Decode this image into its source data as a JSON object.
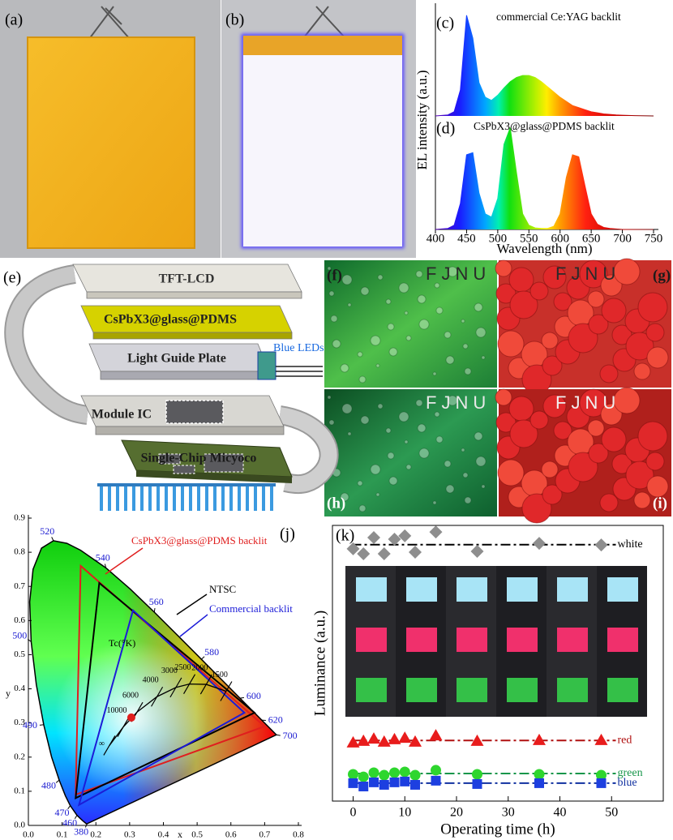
{
  "photos": [
    {
      "label": "(a)"
    },
    {
      "label": "(b)"
    },
    {
      "label": "(f)",
      "caption": "FJNU"
    },
    {
      "label": "(g)",
      "caption": "FJNU"
    },
    {
      "label": "(h)",
      "caption": "FJNU"
    },
    {
      "label": "(i)",
      "caption": "FJNU"
    }
  ],
  "diagram": {
    "label": "(e)",
    "layers": [
      "TFT-LCD",
      "CsPbX3@glass@PDMS",
      "Light Guide Plate",
      "Module IC",
      "Single-Chip Micyoco"
    ],
    "leds": "Blue LEDs"
  },
  "chart_data": [
    {
      "type": "area",
      "ylabel": "EL intensity (a.u.)",
      "xlabel": "Wavelength (nm)",
      "x": [
        400,
        410,
        420,
        430,
        440,
        450,
        460,
        470,
        480,
        490,
        500,
        510,
        520,
        530,
        540,
        550,
        560,
        570,
        580,
        590,
        600,
        610,
        620,
        630,
        640,
        650,
        660,
        670,
        680,
        690,
        700,
        710,
        720,
        730,
        740,
        750
      ],
      "xlim": [
        400,
        750
      ],
      "xticks": [
        400,
        450,
        500,
        550,
        600,
        650,
        700,
        750
      ],
      "ylim": [
        0,
        1
      ],
      "series": [
        {
          "name": "commercial Ce:YAG backlit",
          "panel": "(c)",
          "values": [
            0,
            0.005,
            0.01,
            0.04,
            0.25,
            0.97,
            0.75,
            0.32,
            0.18,
            0.15,
            0.2,
            0.27,
            0.33,
            0.37,
            0.39,
            0.39,
            0.37,
            0.33,
            0.28,
            0.23,
            0.18,
            0.14,
            0.1,
            0.08,
            0.06,
            0.04,
            0.03,
            0.02,
            0.015,
            0.01,
            0.007,
            0.005,
            0.003,
            0.002,
            0.001,
            0
          ]
        },
        {
          "name": "CsPbX3@glass@PDMS backlit",
          "panel": "(d)",
          "values": [
            0,
            0.005,
            0.01,
            0.04,
            0.25,
            0.72,
            0.74,
            0.35,
            0.15,
            0.12,
            0.3,
            0.82,
            0.98,
            0.55,
            0.15,
            0.04,
            0.015,
            0.01,
            0.01,
            0.03,
            0.15,
            0.5,
            0.72,
            0.7,
            0.42,
            0.15,
            0.05,
            0.02,
            0.01,
            0.005,
            0,
            0,
            0,
            0,
            0,
            0
          ]
        }
      ]
    },
    {
      "type": "cie",
      "panel": "(j)",
      "xlabel": "x",
      "ylabel": "y",
      "xlim": [
        0,
        0.8
      ],
      "ylim": [
        0,
        0.9
      ],
      "xticks": [
        {
          "value": 0,
          "label": "0.0"
        },
        0.1,
        0.2,
        0.3,
        0.4,
        0.5,
        0.6,
        0.7,
        0.8
      ],
      "yticks": [
        {
          "value": 0,
          "label": "0.0"
        },
        0.1,
        0.2,
        0.3,
        0.4,
        0.5,
        0.6,
        0.7,
        0.8,
        0.9
      ],
      "locus": {
        "x": [
          0.1741,
          0.1714,
          0.1644,
          0.1566,
          0.144,
          0.1241,
          0.1096,
          0.0913,
          0.0687,
          0.0454,
          0.0235,
          0.0082,
          0.0039,
          0.0139,
          0.0389,
          0.0743,
          0.1142,
          0.1547,
          0.2296,
          0.3016,
          0.3731,
          0.4441,
          0.5125,
          0.5752,
          0.627,
          0.6658,
          0.6915,
          0.719,
          0.7347
        ],
        "y": [
          0.005,
          0.0051,
          0.0109,
          0.0177,
          0.0297,
          0.0578,
          0.0868,
          0.1327,
          0.2007,
          0.295,
          0.4127,
          0.5384,
          0.6548,
          0.7502,
          0.812,
          0.8338,
          0.8262,
          0.8059,
          0.7543,
          0.6923,
          0.6245,
          0.5547,
          0.4866,
          0.4242,
          0.3725,
          0.334,
          0.3083,
          0.2809,
          0.2653
        ]
      },
      "wavelength_labels": [
        {
          "wavelength": 380,
          "x": 0.1741,
          "y": 0.005
        },
        {
          "wavelength": 460,
          "x": 0.144,
          "y": 0.0297
        },
        {
          "wavelength": 470,
          "x": 0.1241,
          "y": 0.0578
        },
        {
          "wavelength": 480,
          "x": 0.0913,
          "y": 0.1327
        },
        {
          "wavelength": 490,
          "x": 0.0454,
          "y": 0.295
        },
        {
          "wavelength": 500,
          "x": 0.0082,
          "y": 0.5384
        },
        {
          "wavelength": 520,
          "x": 0.0743,
          "y": 0.8338
        },
        {
          "wavelength": 540,
          "x": 0.2296,
          "y": 0.7543
        },
        {
          "wavelength": 560,
          "x": 0.3731,
          "y": 0.6245
        },
        {
          "wavelength": 580,
          "x": 0.5125,
          "y": 0.4866
        },
        {
          "wavelength": 600,
          "x": 0.627,
          "y": 0.3725
        },
        {
          "wavelength": 620,
          "x": 0.6915,
          "y": 0.3083
        },
        {
          "wavelength": 700,
          "x": 0.7347,
          "y": 0.2653
        }
      ],
      "gamuts": [
        {
          "name": "CsPbX3@glass@PDMS backlit",
          "color": "#e01e1e",
          "x": [
            0.7,
            0.155,
            0.14
          ],
          "y": [
            0.29,
            0.76,
            0.09
          ]
        },
        {
          "name": "NTSC",
          "color": "#000000",
          "x": [
            0.67,
            0.21,
            0.14
          ],
          "y": [
            0.33,
            0.71,
            0.08
          ]
        },
        {
          "name": "Commercial backlit",
          "color": "#1c1cd8",
          "x": [
            0.64,
            0.31,
            0.15
          ],
          "y": [
            0.33,
            0.63,
            0.06
          ]
        }
      ],
      "planckian": {
        "label": "Tc(°K)",
        "points": [
          {
            "label": "∞",
            "x": 0.24,
            "y": 0.234
          },
          {
            "label": 10000,
            "x": 0.281,
            "y": 0.288
          },
          {
            "label": 6000,
            "x": 0.322,
            "y": 0.332
          },
          {
            "label": 4000,
            "x": 0.381,
            "y": 0.377
          },
          {
            "label": 3000,
            "x": 0.437,
            "y": 0.404
          },
          {
            "label": 2500,
            "x": 0.477,
            "y": 0.414
          },
          {
            "label": 2000,
            "x": 0.527,
            "y": 0.413
          },
          {
            "label": 1500,
            "x": 0.586,
            "y": 0.393
          }
        ]
      },
      "white_point": {
        "color": "#e01e1e",
        "x": 0.305,
        "y": 0.316
      }
    },
    {
      "type": "scatter",
      "panel": "(k)",
      "xlabel": "Operating time (h)",
      "ylabel": "Luminance (a.u.)",
      "xlim": [
        -4,
        60
      ],
      "xticks": [
        0,
        10,
        20,
        30,
        40,
        50
      ],
      "ylim": [
        0,
        1
      ],
      "x": [
        0,
        2,
        4,
        6,
        8,
        10,
        12,
        16,
        24,
        36,
        48
      ],
      "series": [
        {
          "name": "white",
          "color": "#8e8e8e",
          "line_color": "#000000",
          "marker": "diamond",
          "level": 0.93,
          "values": [
            0.915,
            0.897,
            0.956,
            0.897,
            0.95,
            0.962,
            0.903,
            0.976,
            0.906,
            0.935,
            0.929
          ]
        },
        {
          "name": "red",
          "color": "#e81c1c",
          "line_color": "#b01010",
          "marker": "triangle",
          "level": 0.22,
          "values": [
            0.212,
            0.218,
            0.226,
            0.215,
            0.224,
            0.229,
            0.215,
            0.238,
            0.218,
            0.221,
            0.221
          ]
        },
        {
          "name": "green",
          "color": "#2ed62e",
          "line_color": "#17964a",
          "marker": "circle",
          "level": 0.1,
          "values": [
            0.097,
            0.088,
            0.103,
            0.094,
            0.103,
            0.106,
            0.094,
            0.112,
            0.097,
            0.097,
            0.094
          ]
        },
        {
          "name": "blue",
          "color": "#1d3fe0",
          "line_color": "#1030a0",
          "marker": "square",
          "level": 0.065,
          "values": [
            0.065,
            0.053,
            0.068,
            0.059,
            0.068,
            0.071,
            0.059,
            0.074,
            0.062,
            0.065,
            0.065
          ]
        }
      ]
    }
  ]
}
